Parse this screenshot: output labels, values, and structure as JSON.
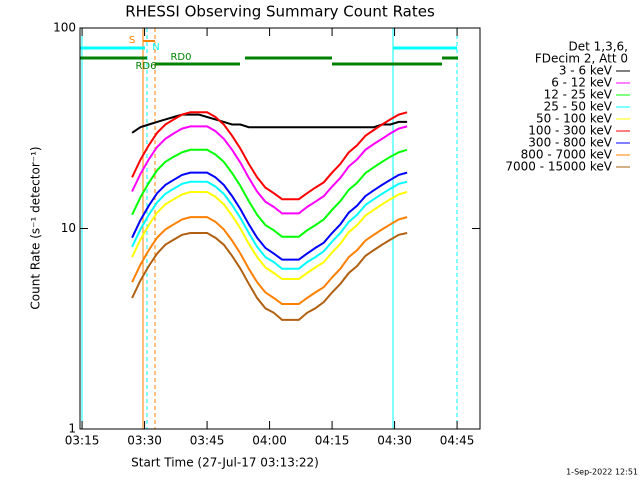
{
  "chart_data": {
    "type": "line",
    "title": "RHESSI Observing Summary Count Rates",
    "x_label": "Start Time (27-Jul-17 03:13:22)",
    "y_label": "Count Rate (s⁻¹ detector⁻¹)",
    "log_y": true,
    "xlim": [
      14.5,
      110.5
    ],
    "ylim": [
      1,
      100
    ],
    "xticks": [
      {
        "value": 15,
        "label": "03:15"
      },
      {
        "value": 30,
        "label": "03:30"
      },
      {
        "value": 45,
        "label": "03:45"
      },
      {
        "value": 60,
        "label": "04:00"
      },
      {
        "value": 75,
        "label": "04:15"
      },
      {
        "value": 90,
        "label": "04:30"
      },
      {
        "value": 105,
        "label": "04:45"
      }
    ],
    "yticks": [
      1,
      10,
      100
    ],
    "x": [
      27,
      29,
      31,
      33,
      35,
      37,
      39,
      41,
      43,
      45,
      47,
      49,
      51,
      53,
      55,
      57,
      59,
      61,
      63,
      65,
      67,
      69,
      71,
      73,
      75,
      77,
      79,
      81,
      83,
      85,
      87,
      89,
      91,
      93
    ],
    "legend_header": [
      "Det 1,3,6,",
      "FDecim 2, Att 0"
    ],
    "annotations": [
      "S",
      "N",
      "RD6",
      "RD0"
    ],
    "footer": "1-Sep-2022 12:51",
    "series": [
      {
        "name": "3 - 6 keV",
        "color": "#000000",
        "values": [
          30,
          32,
          33,
          34,
          35,
          36,
          37,
          37,
          37,
          36,
          35,
          34,
          33,
          33,
          32,
          32,
          32,
          32,
          32,
          32,
          32,
          32,
          32,
          32,
          32,
          32,
          32,
          32,
          32,
          32,
          33,
          33,
          34,
          34
        ]
      },
      {
        "name": "6 - 12 keV",
        "color": "#ff00ff",
        "values": [
          15.3,
          18.7,
          22.1,
          25.5,
          28,
          29.8,
          31.5,
          32.3,
          32.3,
          32.3,
          30.6,
          28,
          24.7,
          21.3,
          17.9,
          15.3,
          13.6,
          12.8,
          11.9,
          11.9,
          11.9,
          12.8,
          13.6,
          14.5,
          16.2,
          17.9,
          20.4,
          22.1,
          24.7,
          26.4,
          28,
          29.8,
          31.5,
          32.3
        ]
      },
      {
        "name": "12 - 25 keV",
        "color": "#00ff00",
        "values": [
          11.7,
          14.3,
          16.9,
          19.5,
          21.5,
          22.8,
          24,
          24.7,
          24.7,
          24.7,
          23.4,
          21.5,
          18.9,
          16.3,
          13.7,
          11.7,
          10.4,
          9.8,
          9.1,
          9.1,
          9.1,
          9.8,
          10.4,
          11.1,
          12.4,
          13.7,
          15.6,
          16.9,
          18.9,
          20.2,
          21.5,
          22.8,
          24,
          24.7
        ]
      },
      {
        "name": "25 - 50 keV",
        "color": "#00ffff",
        "values": [
          8.1,
          9.9,
          11.7,
          13.5,
          14.9,
          15.8,
          16.7,
          17.1,
          17.1,
          17.1,
          16.2,
          14.9,
          13.1,
          11.3,
          9.5,
          8.1,
          7.2,
          6.8,
          6.3,
          6.3,
          6.3,
          6.8,
          7.2,
          7.7,
          8.6,
          9.5,
          10.8,
          11.7,
          13.1,
          14,
          14.9,
          15.8,
          16.7,
          17.1
        ]
      },
      {
        "name": "50 - 100 keV",
        "color": "#ffff00",
        "values": [
          7.2,
          8.8,
          10.4,
          12,
          13.2,
          14,
          14.8,
          15.2,
          15.2,
          15.2,
          14.4,
          13.2,
          11.6,
          10,
          8.4,
          7.2,
          6.4,
          6,
          5.6,
          5.6,
          5.6,
          6,
          6.4,
          6.8,
          7.6,
          8.4,
          9.6,
          10.4,
          11.6,
          12.4,
          13.2,
          14,
          14.8,
          15.2
        ]
      },
      {
        "name": "100 - 300 keV",
        "color": "#ff0000",
        "values": [
          18,
          22,
          26,
          30,
          33,
          35,
          37,
          38,
          38,
          38,
          36,
          33,
          29,
          25,
          21,
          18,
          16,
          15,
          14,
          14,
          14,
          15,
          16,
          17,
          19,
          21,
          24,
          26,
          29,
          31,
          33,
          35,
          37,
          38
        ]
      },
      {
        "name": "300 - 800 keV",
        "color": "#0000ff",
        "values": [
          9,
          11,
          13,
          15,
          16.5,
          17.5,
          18.5,
          19,
          19,
          19,
          18,
          16.5,
          14.5,
          12.5,
          10.5,
          9,
          8,
          7.5,
          7,
          7,
          7,
          7.5,
          8,
          8.5,
          9.5,
          10.5,
          12,
          13,
          14.5,
          15.5,
          16.5,
          17.5,
          18.5,
          19
        ]
      },
      {
        "name": "800 - 7000 keV",
        "color": "#ff8000",
        "values": [
          5.4,
          6.6,
          7.8,
          9,
          9.9,
          10.5,
          11.1,
          11.4,
          11.4,
          11.4,
          10.8,
          9.9,
          8.7,
          7.5,
          6.3,
          5.4,
          4.8,
          4.5,
          4.2,
          4.2,
          4.2,
          4.5,
          4.8,
          5.1,
          5.7,
          6.3,
          7.2,
          7.8,
          8.7,
          9.3,
          9.9,
          10.5,
          11.1,
          11.4
        ]
      },
      {
        "name": "7000 - 15000 keV",
        "color": "#b06010",
        "values": [
          4.5,
          5.5,
          6.5,
          7.5,
          8.3,
          8.8,
          9.3,
          9.5,
          9.5,
          9.5,
          9,
          8.3,
          7.3,
          6.3,
          5.3,
          4.5,
          4,
          3.8,
          3.5,
          3.5,
          3.5,
          3.8,
          4,
          4.3,
          4.8,
          5.3,
          6,
          6.5,
          7.3,
          7.8,
          8.3,
          8.8,
          9.3,
          9.5
        ]
      }
    ]
  }
}
